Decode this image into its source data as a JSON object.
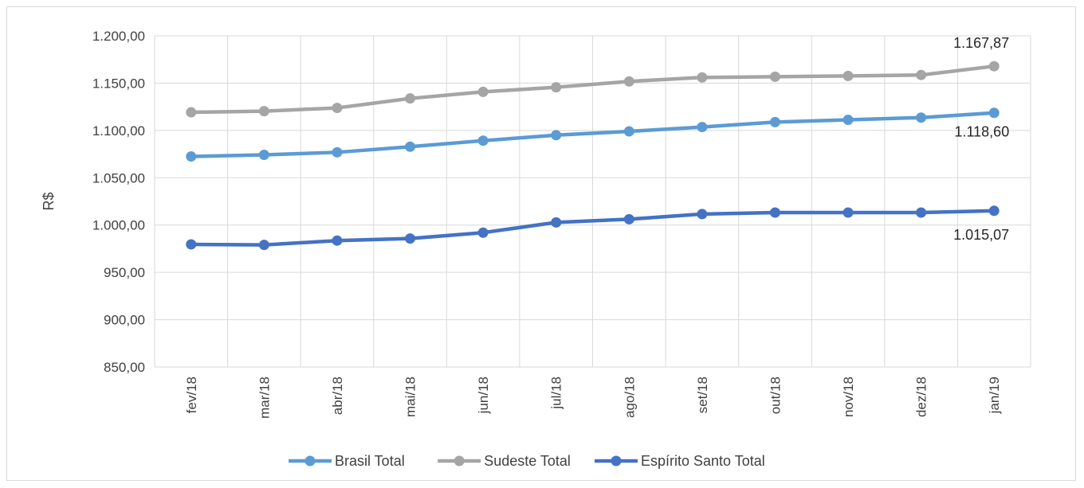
{
  "chart_data": {
    "type": "line",
    "title": "",
    "xlabel": "",
    "ylabel": "R$",
    "ylim": [
      850,
      1200
    ],
    "ytick_step": 50,
    "yticks": [
      "850,00",
      "900,00",
      "950,00",
      "1.000,00",
      "1.050,00",
      "1.100,00",
      "1.150,00",
      "1.200,00"
    ],
    "grid": true,
    "legend_position": "bottom",
    "categories": [
      "fev/18",
      "mar/18",
      "abr/18",
      "mai/18",
      "jun/18",
      "jul/18",
      "ago/18",
      "set/18",
      "out/18",
      "nov/18",
      "dez/18",
      "jan/19"
    ],
    "series": [
      {
        "name": "Brasil Total",
        "color": "#5b9bd5",
        "values": [
          1072.5,
          1074.2,
          1076.9,
          1082.8,
          1089.2,
          1095.0,
          1099.0,
          1103.6,
          1108.8,
          1111.2,
          1113.6,
          1118.6
        ],
        "end_label": "1.118,60"
      },
      {
        "name": "Sudeste Total",
        "color": "#a5a5a5",
        "values": [
          1119.2,
          1120.4,
          1123.8,
          1133.8,
          1140.8,
          1145.6,
          1151.8,
          1156.0,
          1156.8,
          1157.6,
          1158.6,
          1167.87
        ],
        "end_label": "1.167,87"
      },
      {
        "name": "Espírito Santo Total",
        "color": "#4472c4",
        "values": [
          979.6,
          979.0,
          983.6,
          985.8,
          992.0,
          1002.8,
          1006.2,
          1011.6,
          1013.2,
          1013.2,
          1013.2,
          1015.07
        ],
        "end_label": "1.015,07"
      }
    ]
  }
}
